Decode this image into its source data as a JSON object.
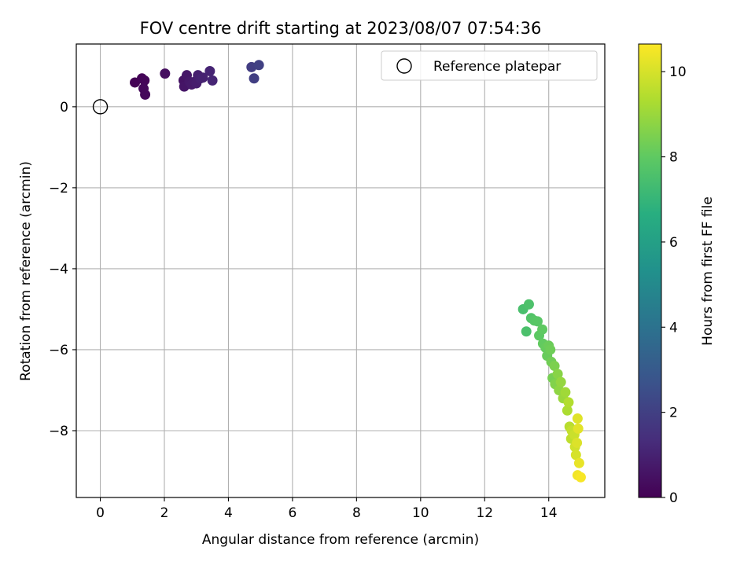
{
  "chart_data": {
    "type": "scatter",
    "title": "FOV centre drift starting at 2023/08/07 07:54:36",
    "xlabel": "Angular distance from reference (arcmin)",
    "ylabel": "Rotation from reference (arcmin)",
    "xlim": [
      -0.75,
      15.75
    ],
    "ylim": [
      -9.65,
      1.55
    ],
    "xticks": [
      0,
      2,
      4,
      6,
      8,
      10,
      12,
      14
    ],
    "yticks": [
      0,
      -2,
      -4,
      -6,
      -8
    ],
    "grid": true,
    "legend": {
      "placement": "top-right",
      "entries": [
        "Reference platepar"
      ]
    },
    "reference_point": {
      "x": 0,
      "y": 0
    },
    "colorbar": {
      "label": "Hours from first FF file",
      "range": [
        0,
        10.65
      ],
      "ticks": [
        0,
        2,
        4,
        6,
        8,
        10
      ],
      "colormap": "viridis"
    },
    "points": [
      {
        "x": 1.08,
        "y": 0.6,
        "c": 0.05
      },
      {
        "x": 1.3,
        "y": 0.7,
        "c": 0.1
      },
      {
        "x": 1.38,
        "y": 0.65,
        "c": 0.15
      },
      {
        "x": 1.35,
        "y": 0.45,
        "c": 0.2
      },
      {
        "x": 1.4,
        "y": 0.3,
        "c": 0.25
      },
      {
        "x": 2.02,
        "y": 0.82,
        "c": 0.4
      },
      {
        "x": 2.6,
        "y": 0.65,
        "c": 0.55
      },
      {
        "x": 2.62,
        "y": 0.5,
        "c": 0.6
      },
      {
        "x": 2.7,
        "y": 0.78,
        "c": 0.65
      },
      {
        "x": 2.78,
        "y": 0.62,
        "c": 0.7
      },
      {
        "x": 2.85,
        "y": 0.55,
        "c": 0.75
      },
      {
        "x": 2.95,
        "y": 0.62,
        "c": 0.8
      },
      {
        "x": 3.0,
        "y": 0.58,
        "c": 0.85
      },
      {
        "x": 3.05,
        "y": 0.78,
        "c": 0.9
      },
      {
        "x": 3.12,
        "y": 0.7,
        "c": 0.95
      },
      {
        "x": 3.2,
        "y": 0.72,
        "c": 1.0
      },
      {
        "x": 3.42,
        "y": 0.88,
        "c": 1.05
      },
      {
        "x": 3.5,
        "y": 0.65,
        "c": 1.1
      },
      {
        "x": 4.72,
        "y": 0.98,
        "c": 1.9
      },
      {
        "x": 4.8,
        "y": 0.7,
        "c": 1.95
      },
      {
        "x": 4.95,
        "y": 1.03,
        "c": 2.0
      },
      {
        "x": 13.2,
        "y": -5.0,
        "c": 7.5
      },
      {
        "x": 13.3,
        "y": -5.55,
        "c": 7.55
      },
      {
        "x": 13.38,
        "y": -4.88,
        "c": 7.6
      },
      {
        "x": 13.45,
        "y": -5.22,
        "c": 7.7
      },
      {
        "x": 13.55,
        "y": -5.28,
        "c": 7.8
      },
      {
        "x": 13.65,
        "y": -5.3,
        "c": 7.85
      },
      {
        "x": 13.7,
        "y": -5.65,
        "c": 7.95
      },
      {
        "x": 13.8,
        "y": -5.5,
        "c": 8.0
      },
      {
        "x": 13.82,
        "y": -5.85,
        "c": 8.05
      },
      {
        "x": 13.9,
        "y": -5.95,
        "c": 8.1
      },
      {
        "x": 13.95,
        "y": -6.15,
        "c": 8.15
      },
      {
        "x": 14.0,
        "y": -5.9,
        "c": 8.2
      },
      {
        "x": 14.05,
        "y": -6.0,
        "c": 8.25
      },
      {
        "x": 14.08,
        "y": -6.3,
        "c": 8.3
      },
      {
        "x": 14.12,
        "y": -6.7,
        "c": 8.4
      },
      {
        "x": 14.18,
        "y": -6.4,
        "c": 8.5
      },
      {
        "x": 14.2,
        "y": -6.85,
        "c": 8.6
      },
      {
        "x": 14.28,
        "y": -6.6,
        "c": 8.7
      },
      {
        "x": 14.32,
        "y": -7.0,
        "c": 8.8
      },
      {
        "x": 14.38,
        "y": -6.8,
        "c": 8.9
      },
      {
        "x": 14.45,
        "y": -7.2,
        "c": 9.0
      },
      {
        "x": 14.52,
        "y": -7.05,
        "c": 9.1
      },
      {
        "x": 14.58,
        "y": -7.5,
        "c": 9.3
      },
      {
        "x": 14.62,
        "y": -7.3,
        "c": 9.4
      },
      {
        "x": 14.65,
        "y": -7.9,
        "c": 9.5
      },
      {
        "x": 14.7,
        "y": -8.2,
        "c": 9.6
      },
      {
        "x": 14.72,
        "y": -8.0,
        "c": 9.7
      },
      {
        "x": 14.8,
        "y": -8.1,
        "c": 9.8
      },
      {
        "x": 14.82,
        "y": -8.4,
        "c": 9.9
      },
      {
        "x": 14.85,
        "y": -8.6,
        "c": 10.0
      },
      {
        "x": 14.88,
        "y": -8.3,
        "c": 10.1
      },
      {
        "x": 14.9,
        "y": -7.7,
        "c": 10.15
      },
      {
        "x": 14.92,
        "y": -7.95,
        "c": 10.2
      },
      {
        "x": 14.95,
        "y": -8.8,
        "c": 10.3
      },
      {
        "x": 14.9,
        "y": -9.1,
        "c": 10.45
      },
      {
        "x": 15.0,
        "y": -9.15,
        "c": 10.55
      }
    ]
  }
}
